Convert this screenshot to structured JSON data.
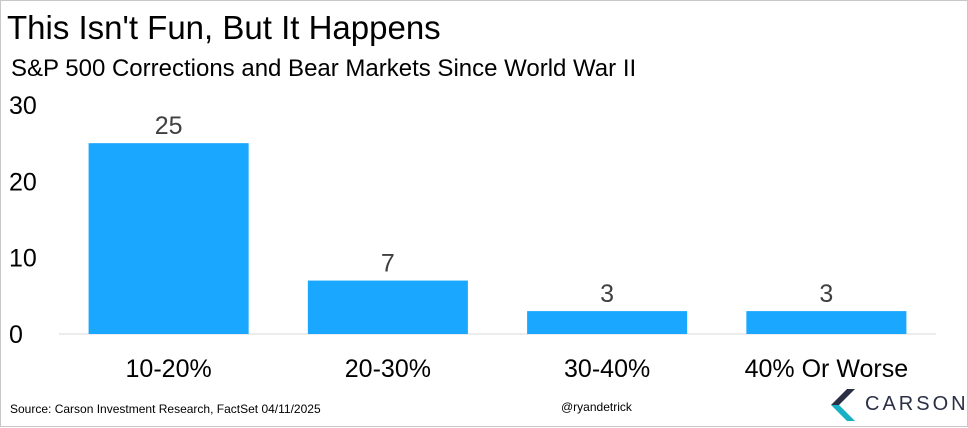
{
  "title": "This Isn't Fun, But It Happens",
  "subtitle": "S&P 500 Corrections and Bear Markets Since World War II",
  "footer": {
    "source": "Source: Carson Investment Research, FactSet 04/11/2025",
    "handle": "@ryandetrick"
  },
  "logo": {
    "text": "CARSON",
    "icon": "carson-chevron-icon",
    "colors": [
      "#2b2f45",
      "#17b0c4"
    ]
  },
  "colors": {
    "bar": "#1aa7ff",
    "axis": "#d9d9d9",
    "label": "#404040"
  },
  "chart_data": {
    "type": "bar",
    "categories": [
      "10-20%",
      "20-30%",
      "30-40%",
      "40% Or Worse"
    ],
    "values": [
      25,
      7,
      3,
      3
    ],
    "data_labels": [
      "25",
      "7",
      "3",
      "3"
    ],
    "ylim": [
      0,
      30
    ],
    "yticks": [
      0,
      10,
      20,
      30
    ],
    "grid": false,
    "legend": "none",
    "xlabel": "",
    "ylabel": ""
  }
}
